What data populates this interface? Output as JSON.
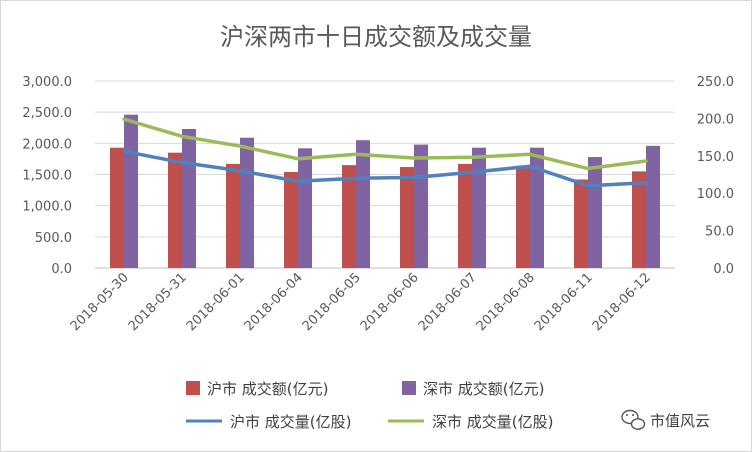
{
  "chart_data": {
    "type": "bar",
    "title": "沪深两市十日成交额及成交量",
    "categories": [
      "2018-05-30",
      "2018-05-31",
      "2018-06-01",
      "2018-06-04",
      "2018-06-05",
      "2018-06-06",
      "2018-06-07",
      "2018-06-08",
      "2018-06-11",
      "2018-06-12"
    ],
    "y_left": {
      "ylim": [
        0,
        3000
      ],
      "ticks": [
        "0.0",
        "500.0",
        "1,000.0",
        "1,500.0",
        "2,000.0",
        "2,500.0",
        "3,000.0"
      ]
    },
    "y_right": {
      "ylim": [
        0,
        250
      ],
      "ticks": [
        "0.0",
        "50.0",
        "100.0",
        "150.0",
        "200.0",
        "250.0"
      ]
    },
    "grid": true,
    "legend_position": "bottom",
    "series": [
      {
        "name": "沪市 成交额(亿元)",
        "type": "bar",
        "axis": "left",
        "color": "#c0504d",
        "values": [
          1930,
          1850,
          1670,
          1540,
          1650,
          1620,
          1670,
          1640,
          1420,
          1550
        ]
      },
      {
        "name": "深市 成交额(亿元)",
        "type": "bar",
        "axis": "left",
        "color": "#8064a2",
        "values": [
          2460,
          2230,
          2090,
          1920,
          2050,
          1980,
          1930,
          1930,
          1780,
          1960
        ]
      },
      {
        "name": "沪市 成交量(亿股)",
        "type": "line",
        "axis": "right",
        "color": "#4f81bd",
        "values": [
          156,
          141,
          130,
          116,
          120,
          121,
          128,
          136,
          110,
          114
        ]
      },
      {
        "name": "深市 成交量(亿股)",
        "type": "line",
        "axis": "right",
        "color": "#9bbb59",
        "values": [
          199,
          176,
          163,
          146,
          152,
          147,
          148,
          152,
          133,
          143
        ]
      }
    ]
  },
  "watermark": {
    "text": "市值风云",
    "icon": "wechat-icon"
  }
}
